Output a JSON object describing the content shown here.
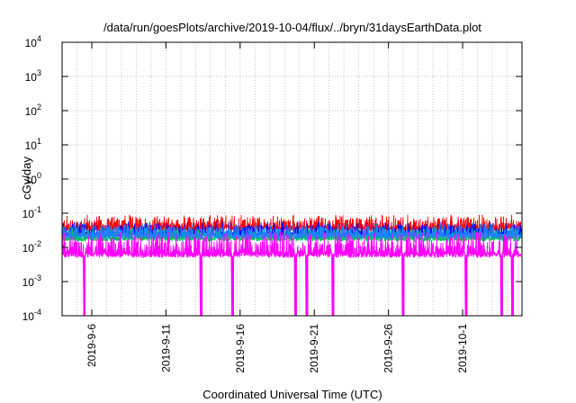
{
  "chart_data": {
    "type": "line",
    "title": "/data/run/goesPlots/archive/2019-10-04/flux/../bryn/31daysEarthData.plot",
    "xlabel": "Coordinated Universal Time (UTC)",
    "ylabel": "cGy/day",
    "yscale": "log",
    "ylim": [
      0.0001,
      10000
    ],
    "xlim": [
      "2019-09-04",
      "2019-10-05"
    ],
    "grid": true,
    "legend": "none",
    "x_ticks": [
      "2019-9-6",
      "2019-9-11",
      "2019-9-16",
      "2019-9-21",
      "2019-9-26",
      "2019-10-1"
    ],
    "y_ticks": [
      {
        "value": 0.0001,
        "base": "10",
        "exp": "-4"
      },
      {
        "value": 0.001,
        "base": "10",
        "exp": "-3"
      },
      {
        "value": 0.01,
        "base": "10",
        "exp": "-2"
      },
      {
        "value": 0.1,
        "base": "10",
        "exp": "-1"
      },
      {
        "value": 1,
        "base": "10",
        "exp": "0"
      },
      {
        "value": 10,
        "base": "10",
        "exp": "1"
      },
      {
        "value": 100,
        "base": "10",
        "exp": "2"
      },
      {
        "value": 1000,
        "base": "10",
        "exp": "3"
      },
      {
        "value": 10000,
        "base": "10",
        "exp": "4"
      }
    ],
    "series": [
      {
        "color": "#ff0000",
        "band": [
          0.03,
          0.08
        ]
      },
      {
        "color": "#0000ff",
        "band": [
          0.02,
          0.05
        ]
      },
      {
        "color": "#00c060",
        "band": [
          0.015,
          0.035
        ]
      },
      {
        "color": "#2080ff",
        "band": [
          0.018,
          0.045
        ]
      },
      {
        "color": "#ff00ff",
        "band": [
          0.005,
          0.025
        ],
        "dips": [
          "2019-09-05T12:00",
          "2019-09-13T09:00",
          "2019-09-15T12:00",
          "2019-09-19T18:00",
          "2019-09-20T12:00",
          "2019-09-22T06:00",
          "2019-09-27T00:00",
          "2019-10-01T06:00",
          "2019-10-03T15:00",
          "2019-10-04T09:00"
        ]
      }
    ]
  }
}
